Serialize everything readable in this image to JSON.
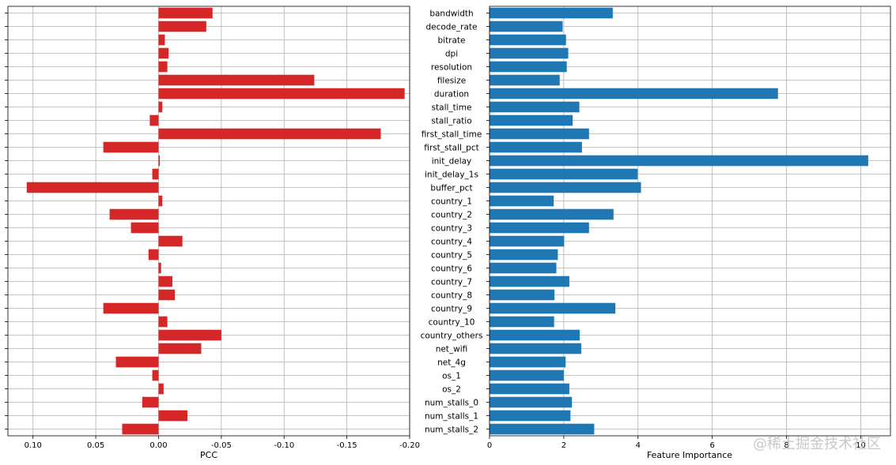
{
  "watermark": "@稀土掘金技术社区",
  "chart_data": [
    {
      "type": "bar",
      "orientation": "horizontal",
      "xlabel": "PCC",
      "xlim": [
        0.12,
        -0.2
      ],
      "x_reversed": true,
      "xticks": [
        0.1,
        0.05,
        0.0,
        -0.05,
        -0.1,
        -0.15,
        -0.2
      ],
      "xtick_labels": [
        "0.10",
        "0.05",
        "0.00",
        "-0.05",
        "-0.10",
        "-0.15",
        "-0.20"
      ],
      "grid": true,
      "color": "#d62728",
      "categories": [
        "bandwidth",
        "decode_rate",
        "bitrate",
        "dpi",
        "resolution",
        "filesize",
        "duration",
        "stall_time",
        "stall_ratio",
        "first_stall_time",
        "first_stall_pct",
        "init_delay",
        "init_delay_1s",
        "buffer_pct",
        "country_1",
        "country_2",
        "country_3",
        "country_4",
        "country_5",
        "country_6",
        "country_7",
        "country_8",
        "country_9",
        "country_10",
        "country_others",
        "net_wifi",
        "net_4g",
        "os_1",
        "os_2",
        "num_stalls_0",
        "num_stalls_1",
        "num_stalls_2"
      ],
      "values": [
        -0.043,
        -0.038,
        -0.005,
        -0.008,
        -0.007,
        -0.124,
        -0.196,
        -0.003,
        0.007,
        -0.177,
        0.044,
        -0.001,
        0.005,
        0.105,
        -0.003,
        0.039,
        0.022,
        -0.019,
        0.008,
        -0.002,
        -0.011,
        -0.013,
        0.044,
        -0.007,
        -0.05,
        -0.034,
        0.034,
        0.005,
        -0.004,
        0.013,
        -0.023,
        0.029
      ]
    },
    {
      "type": "bar",
      "orientation": "horizontal",
      "xlabel": "Feature Importance",
      "xlim": [
        0,
        10.8
      ],
      "xticks": [
        0,
        2,
        4,
        6,
        8,
        10
      ],
      "xtick_labels": [
        "0",
        "2",
        "4",
        "6",
        "8",
        "10"
      ],
      "grid": true,
      "color": "#1f77b4",
      "categories": [
        "bandwidth",
        "decode_rate",
        "bitrate",
        "dpi",
        "resolution",
        "filesize",
        "duration",
        "stall_time",
        "stall_ratio",
        "first_stall_time",
        "first_stall_pct",
        "init_delay",
        "init_delay_1s",
        "buffer_pct",
        "country_1",
        "country_2",
        "country_3",
        "country_4",
        "country_5",
        "country_6",
        "country_7",
        "country_8",
        "country_9",
        "country_10",
        "country_others",
        "net_wifi",
        "net_4g",
        "os_1",
        "os_2",
        "num_stalls_0",
        "num_stalls_1",
        "num_stalls_2"
      ],
      "values": [
        3.32,
        1.97,
        2.06,
        2.12,
        2.08,
        1.89,
        7.77,
        2.42,
        2.24,
        2.68,
        2.49,
        10.2,
        3.99,
        4.08,
        1.73,
        3.34,
        2.68,
        2.01,
        1.84,
        1.8,
        2.15,
        1.75,
        3.39,
        1.74,
        2.43,
        2.47,
        2.05,
        2.0,
        2.15,
        2.22,
        2.18,
        2.82
      ]
    }
  ]
}
